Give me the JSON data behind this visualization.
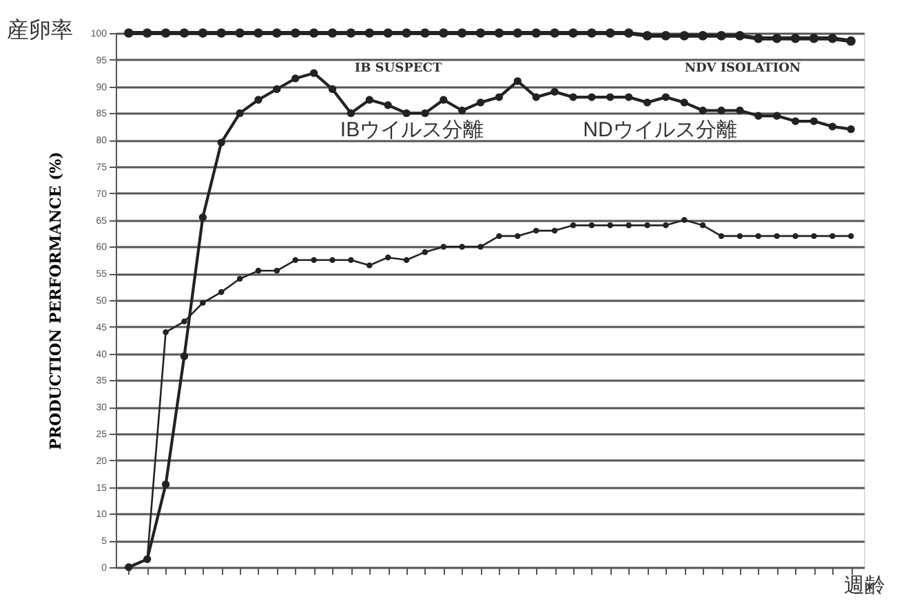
{
  "chart_data": {
    "type": "line",
    "ylabel": "PRODUCTION PERFORMANCE (%)",
    "xlabel": "週齢",
    "categories": [
      null,
      null,
      null,
      null,
      null,
      null,
      null,
      null,
      null,
      null,
      null,
      null,
      null,
      null,
      null,
      null,
      null,
      null,
      null,
      null,
      null,
      null,
      null,
      null,
      null,
      null,
      null,
      null,
      null,
      null,
      null,
      null,
      null,
      null,
      null,
      null,
      null,
      null,
      null,
      null
    ],
    "series": [
      {
        "color": "#222222",
        "values": [
          100,
          100,
          100,
          100,
          100,
          100,
          100,
          100,
          100,
          100,
          100,
          100,
          100,
          100,
          100,
          100,
          100,
          100,
          100,
          100,
          100,
          100,
          100,
          100,
          100,
          100,
          100,
          100,
          99.5,
          99.5,
          99.5,
          99.5,
          99.5,
          99.5,
          99,
          99,
          99,
          99,
          99,
          98.5
        ]
      },
      {
        "color": "#222222",
        "values": [
          0,
          1.5,
          15.5,
          39.5,
          65.5,
          79.5,
          85,
          87.5,
          89.5,
          91.5,
          92.5,
          89.5,
          85,
          87.5,
          86.5,
          85,
          85,
          87.5,
          85.5,
          87,
          88,
          91,
          88,
          89,
          88,
          88,
          88,
          88,
          87,
          88,
          87,
          85.5,
          85.5,
          85.5,
          84.5,
          84.5,
          83.5,
          83.5,
          82.5,
          82
        ]
      },
      {
        "color": "#222222",
        "values": [
          0,
          1.5,
          44,
          46,
          49.5,
          51.5,
          54,
          55.5,
          55.5,
          57.5,
          57.5,
          57.5,
          57.5,
          56.5,
          58,
          57.5,
          59,
          60,
          60,
          60,
          62,
          62,
          63,
          63,
          64,
          64,
          64,
          64,
          64,
          64,
          65,
          64,
          62,
          62,
          62,
          62,
          62,
          62,
          62,
          62
        ]
      }
    ],
    "ylim": [
      0,
      100
    ],
    "yticks": [
      0,
      5,
      10,
      15,
      20,
      25,
      30,
      35,
      40,
      45,
      50,
      55,
      60,
      65,
      70,
      75,
      80,
      85,
      90,
      95,
      100
    ],
    "grid": "y",
    "marker": "circle",
    "line_style": "solid",
    "tick_labels": "y",
    "annotations": [
      "産卵率",
      "IB SUSPECT",
      "NDV ISOLATION",
      "IBウイルス分離",
      "NDウイルス分離"
    ]
  }
}
